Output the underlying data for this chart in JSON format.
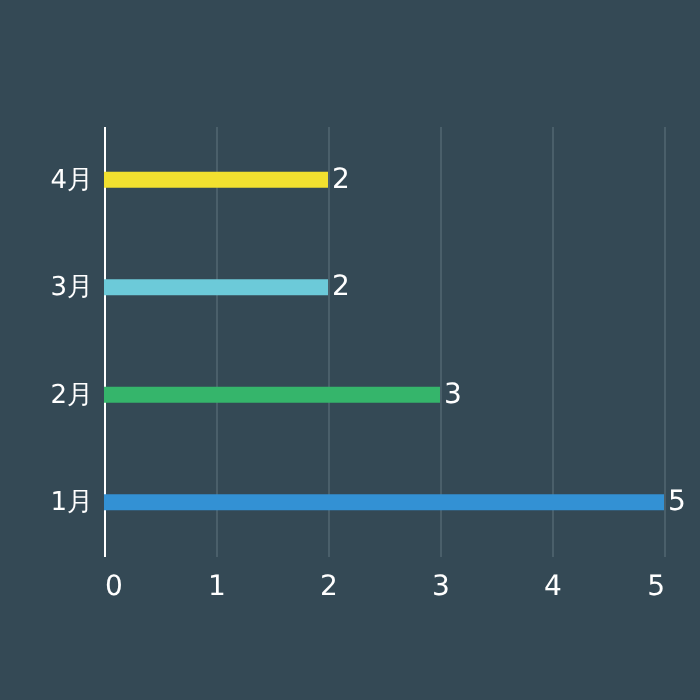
{
  "chart_data": {
    "type": "bar",
    "orientation": "horizontal",
    "categories": [
      "4月",
      "3月",
      "2月",
      "1月"
    ],
    "values": [
      2,
      2,
      3,
      5
    ],
    "colors": [
      "#f2e12f",
      "#6ccad9",
      "#35b56b",
      "#3391d4"
    ],
    "xlim": [
      0,
      5
    ],
    "xticks": [
      0,
      1,
      2,
      3,
      4,
      5
    ],
    "grid": "x",
    "data_labels": true
  }
}
